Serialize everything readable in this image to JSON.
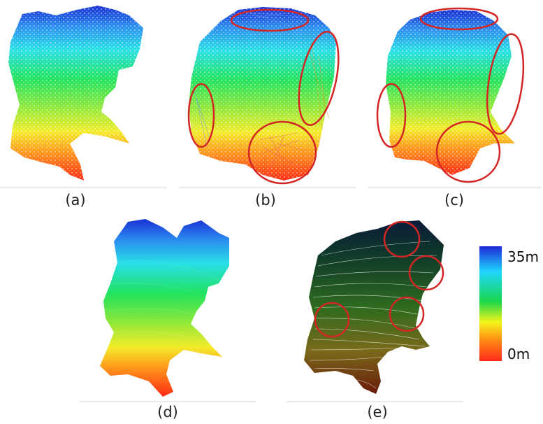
{
  "panels": [
    {
      "id": "a",
      "caption": "(a)"
    },
    {
      "id": "b",
      "caption": "(b)"
    },
    {
      "id": "c",
      "caption": "(c)"
    },
    {
      "id": "d",
      "caption": "(d)"
    },
    {
      "id": "e",
      "caption": "(e)"
    }
  ],
  "legend": {
    "top_label": "35m",
    "bottom_label": "0m",
    "colors": [
      "#1e28d8",
      "#1fd6ff",
      "#19d64b",
      "#f3f51a",
      "#ff8a13",
      "#ff2a1a"
    ]
  },
  "highlight_color": "#d42525"
}
